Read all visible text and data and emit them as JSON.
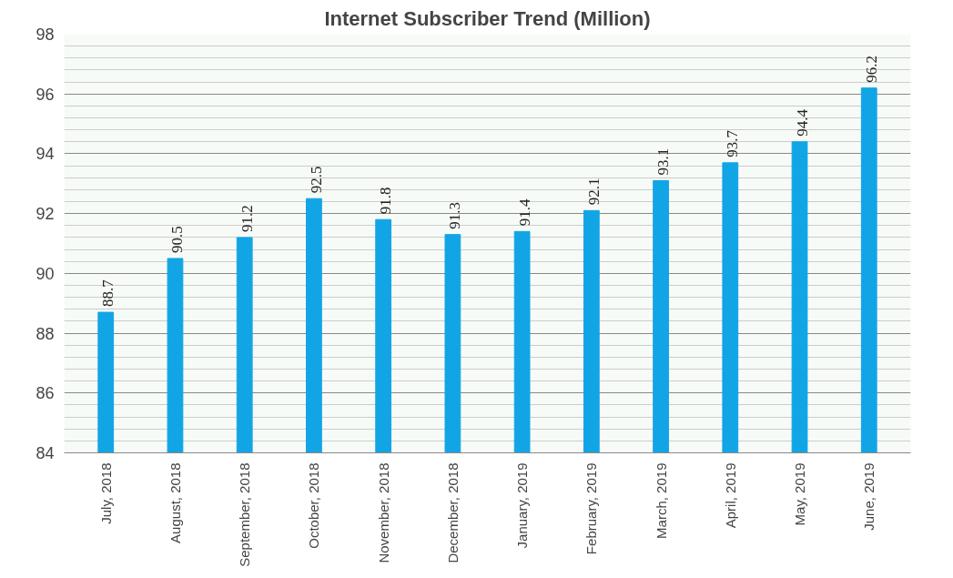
{
  "chart_data": {
    "type": "bar",
    "title": "Internet Subscriber Trend (Million)",
    "categories": [
      "July, 2018",
      "August, 2018",
      "September, 2018",
      "October, 2018",
      "November, 2018",
      "December, 2018",
      "January, 2019",
      "February, 2019",
      "March, 2019",
      "April, 2019",
      "May, 2019",
      "June, 2019"
    ],
    "values": [
      88.7,
      90.5,
      91.2,
      92.5,
      91.8,
      91.3,
      91.4,
      92.1,
      93.1,
      93.7,
      94.4,
      96.2
    ],
    "color": "#12a5e6",
    "ylim": [
      84,
      98
    ],
    "yticks": [
      84,
      86,
      88,
      90,
      92,
      94,
      96,
      98
    ],
    "grid": "y",
    "data_labels": true
  }
}
